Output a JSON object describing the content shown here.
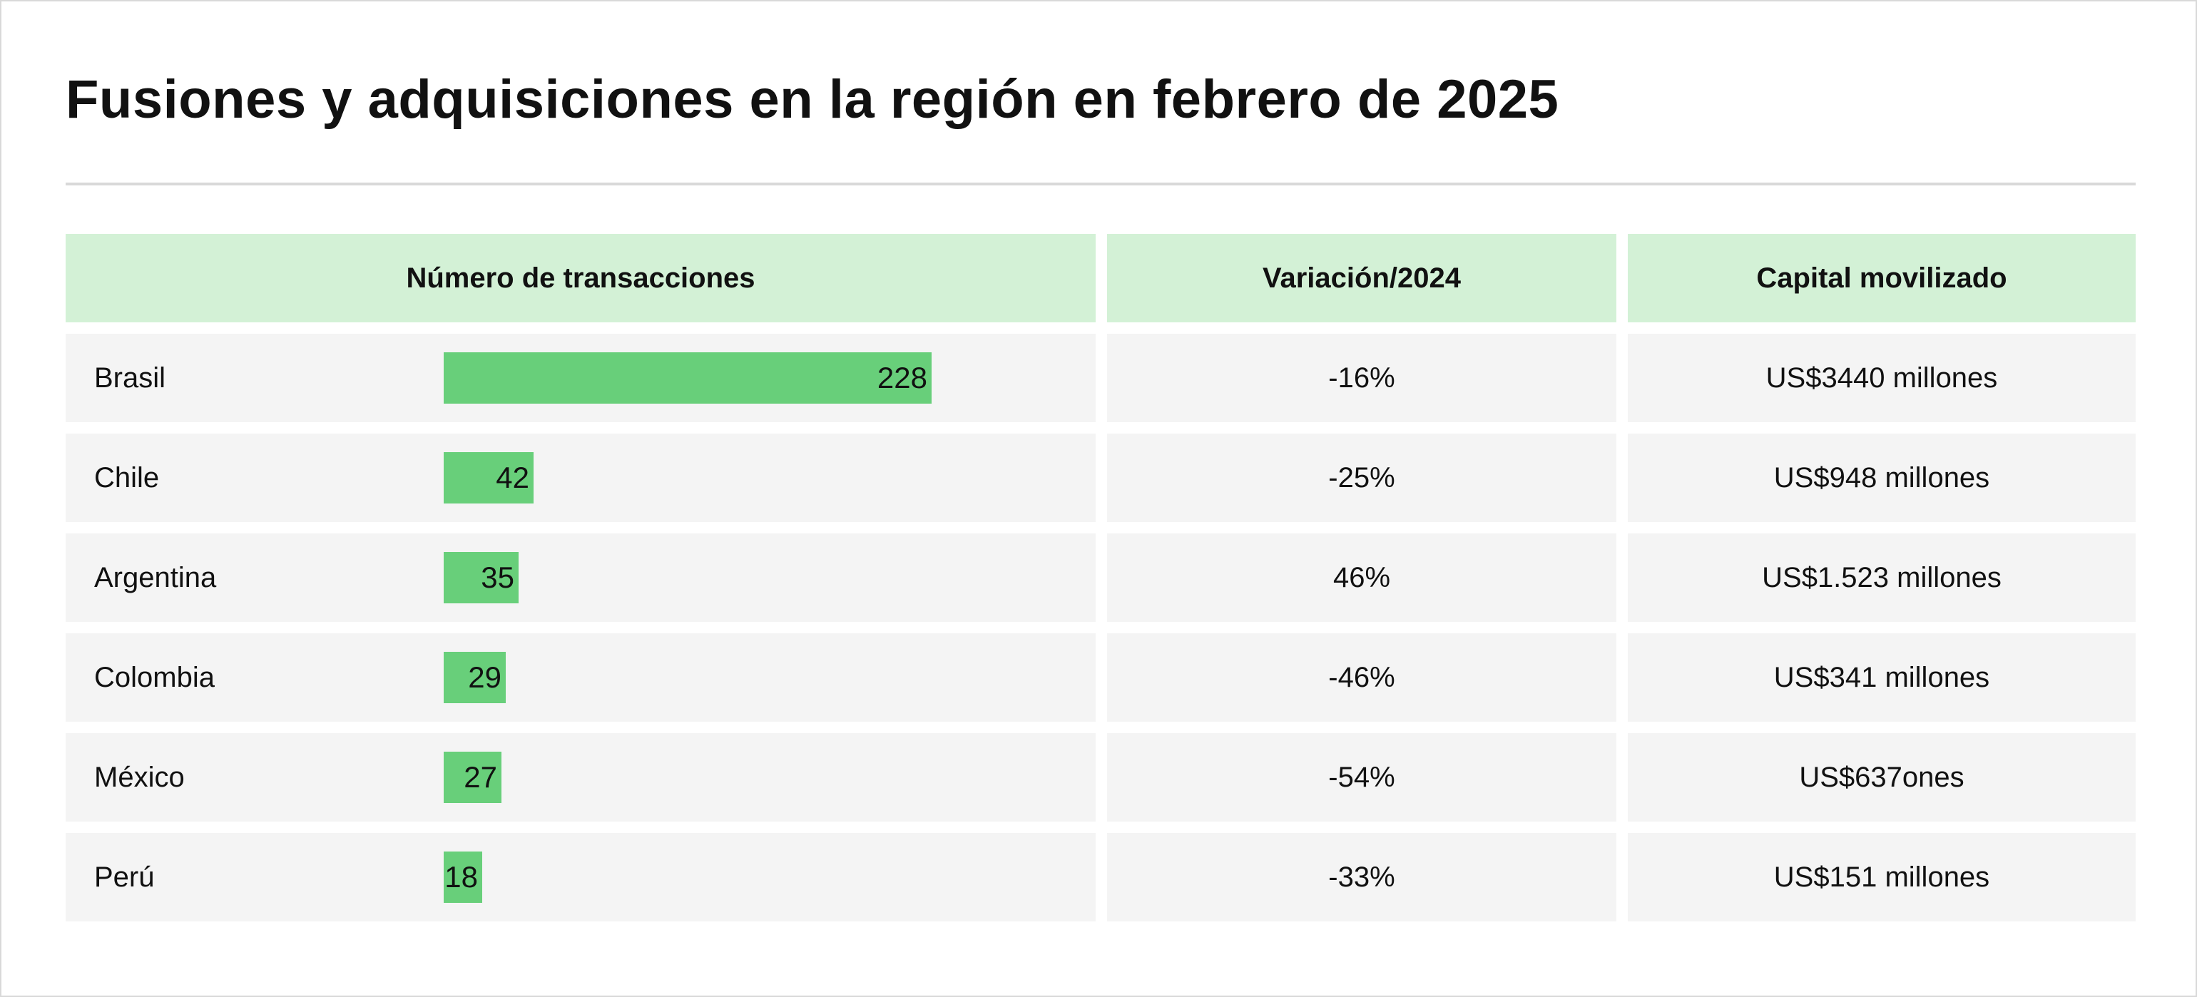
{
  "title": "Fusiones y adquisiciones en la región en febrero de 2025",
  "colors": {
    "header_bg": "#d3f1d6",
    "row_bg": "#f4f4f4",
    "bar": "#68cf7a",
    "rule": "#d9d9d9"
  },
  "headers": {
    "transactions": "Número de transacciones",
    "variation": "Variación/2024",
    "capital": "Capital movilizado"
  },
  "rows": [
    {
      "country": "Brasil",
      "transactions": "228",
      "variation": "-16%",
      "capital": "US$3440 millones"
    },
    {
      "country": "Chile",
      "transactions": "42",
      "variation": "-25%",
      "capital": "US$948 millones"
    },
    {
      "country": "Argentina",
      "transactions": "35",
      "variation": "46%",
      "capital": "US$1.523 millones"
    },
    {
      "country": "Colombia",
      "transactions": "29",
      "variation": "-46%",
      "capital": "US$341 millones"
    },
    {
      "country": "México",
      "transactions": "27",
      "variation": "-54%",
      "capital": "US$637ones"
    },
    {
      "country": "Perú",
      "transactions": "18",
      "variation": "-33%",
      "capital": "US$151 millones"
    }
  ],
  "chart_data": {
    "type": "bar",
    "title": "Fusiones y adquisiciones en la región en febrero de 2025",
    "categories": [
      "Brasil",
      "Chile",
      "Argentina",
      "Colombia",
      "México",
      "Perú"
    ],
    "series": [
      {
        "name": "Número de transacciones",
        "values": [
          228,
          42,
          35,
          29,
          27,
          18
        ]
      }
    ],
    "xlabel": "",
    "ylabel": "",
    "ylim": [
      0,
      228
    ],
    "grid": false,
    "legend": "none"
  }
}
